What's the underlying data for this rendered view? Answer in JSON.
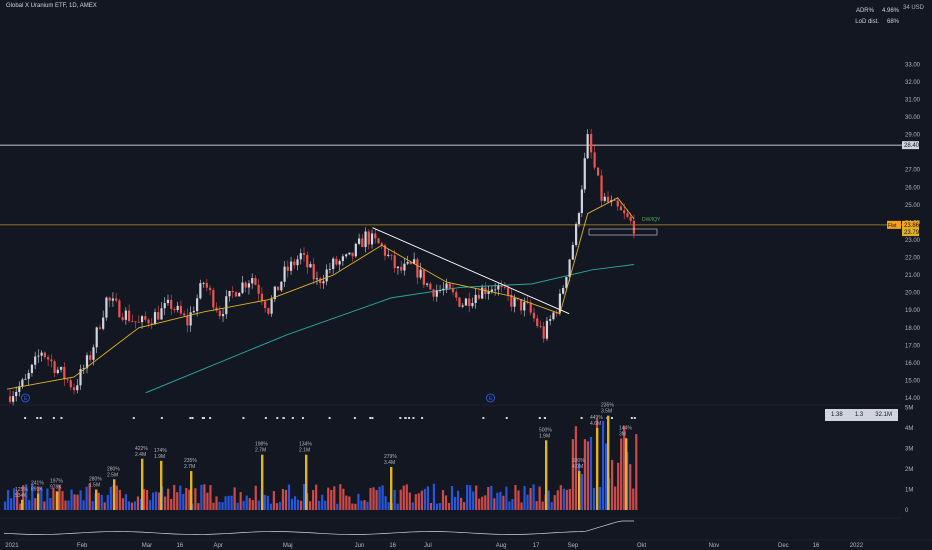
{
  "header": {
    "title": "Global X Uranium ETF, 1D, AMEX",
    "stats": [
      {
        "label": "ADR%",
        "value": "4.96%"
      },
      {
        "label": "LoD dist.",
        "value": "68%"
      }
    ]
  },
  "price_axis": {
    "unit_label": "34 USD",
    "ticks": [
      "33.00",
      "32.00",
      "31.00",
      "30.00",
      "29.00",
      "27.00",
      "26.00",
      "25.00",
      "24.00",
      "23.00",
      "22.00",
      "21.00",
      "20.00",
      "19.00",
      "18.00",
      "17.00",
      "16.00",
      "15.00",
      "14.00"
    ],
    "hline_label": "28.40",
    "flag_label": "Flat",
    "flag_value": "23.86",
    "last_value": "23.79"
  },
  "volume_axis": {
    "ticks": [
      "5M",
      "4M",
      "3M",
      "2M",
      "1M",
      "0"
    ],
    "badge": [
      "1.38",
      "1.3",
      "32.1M"
    ]
  },
  "time_axis": {
    "ticks": [
      "2021",
      "Feb",
      "Mar",
      "16",
      "Apr",
      "Maj",
      "Jun",
      "16",
      "Jul",
      "Aug",
      "17",
      "Sep",
      "Okt",
      "Nov",
      "Dec",
      "16",
      "2022"
    ]
  },
  "annotations": {
    "signal_label": "DW/IQY",
    "volume_labels": [
      [
        "125%",
        "534K"
      ],
      [
        "241%",
        "891K"
      ],
      [
        "197%",
        "978K"
      ],
      [
        "280%",
        "1.5M"
      ],
      [
        "280%",
        "2.5M"
      ],
      [
        "422%",
        "2.4M"
      ],
      [
        "174%",
        "1.9M"
      ],
      [
        "235%",
        "2.7M"
      ],
      [
        "198%",
        "2.7M"
      ],
      [
        "134%",
        "2.1M"
      ],
      [
        "279%",
        "3.4M"
      ],
      [
        "500%",
        "1.9M"
      ],
      [
        "330%",
        "4.0M"
      ],
      [
        "449%",
        "4.6M"
      ],
      [
        "235%",
        "3.5M"
      ],
      [
        "144%",
        "3M"
      ]
    ],
    "earnings_markers": [
      "E",
      "E"
    ]
  },
  "colors": {
    "background": "#131722",
    "up": "#ef5350",
    "down": "#ef5350",
    "up_candle": "#ef5350",
    "sma_short": "#e0b326",
    "sma_long": "#26a69a",
    "trendline": "#ffffff",
    "hline": "#ffffff",
    "resistance": "#e0b326",
    "grid": "#2a2e39"
  },
  "chart_data": {
    "type": "candlestick",
    "title": "Global X Uranium ETF, 1D, AMEX",
    "ylim": [
      14,
      34
    ],
    "horizontal_line": 28.4,
    "resistance_level": 23.86,
    "last_price": 23.79,
    "x_range_dates": [
      "2020-12-28",
      "2022-01-21"
    ],
    "close_path": [
      [
        "2020-12-31",
        14.1
      ],
      [
        "2021-01-08",
        14.9
      ],
      [
        "2021-01-15",
        16.7
      ],
      [
        "2021-01-22",
        15.6
      ],
      [
        "2021-01-29",
        14.6
      ],
      [
        "2021-02-05",
        16.4
      ],
      [
        "2021-02-12",
        19.6
      ],
      [
        "2021-02-19",
        18.9
      ],
      [
        "2021-02-26",
        18.2
      ],
      [
        "2021-03-05",
        18.7
      ],
      [
        "2021-03-12",
        19.3
      ],
      [
        "2021-03-19",
        18.3
      ],
      [
        "2021-03-26",
        20.6
      ],
      [
        "2021-04-02",
        18.9
      ],
      [
        "2021-04-09",
        20.2
      ],
      [
        "2021-04-16",
        20.9
      ],
      [
        "2021-04-23",
        19.1
      ],
      [
        "2021-04-30",
        21.1
      ],
      [
        "2021-05-07",
        22.1
      ],
      [
        "2021-05-14",
        20.6
      ],
      [
        "2021-05-21",
        21.6
      ],
      [
        "2021-05-28",
        21.9
      ],
      [
        "2021-06-04",
        23.2
      ],
      [
        "2021-06-11",
        22.6
      ],
      [
        "2021-06-18",
        21.2
      ],
      [
        "2021-06-25",
        21.5
      ],
      [
        "2021-07-02",
        20.2
      ],
      [
        "2021-07-09",
        20.1
      ],
      [
        "2021-07-16",
        19.4
      ],
      [
        "2021-07-23",
        20.1
      ],
      [
        "2021-07-30",
        20.4
      ],
      [
        "2021-08-06",
        19.5
      ],
      [
        "2021-08-13",
        19.1
      ],
      [
        "2021-08-20",
        17.6
      ],
      [
        "2021-08-27",
        19.6
      ],
      [
        "2021-09-03",
        23.6
      ],
      [
        "2021-09-08",
        28.7
      ],
      [
        "2021-09-14",
        25.4
      ],
      [
        "2021-09-21",
        24.7
      ],
      [
        "2021-09-28",
        23.79
      ]
    ],
    "sma_short_path": [
      [
        "2020-12-31",
        14.5
      ],
      [
        "2021-01-29",
        15.2
      ],
      [
        "2021-02-26",
        18.0
      ],
      [
        "2021-03-26",
        18.9
      ],
      [
        "2021-04-23",
        19.6
      ],
      [
        "2021-05-21",
        21.0
      ],
      [
        "2021-06-11",
        22.7
      ],
      [
        "2021-07-09",
        20.6
      ],
      [
        "2021-08-06",
        19.8
      ],
      [
        "2021-08-27",
        18.8
      ],
      [
        "2021-09-08",
        24.5
      ],
      [
        "2021-09-21",
        25.4
      ],
      [
        "2021-09-28",
        24.2
      ]
    ],
    "sma_long_path": [
      [
        "2021-03-01",
        14.3
      ],
      [
        "2021-05-01",
        17.6
      ],
      [
        "2021-06-15",
        19.7
      ],
      [
        "2021-07-15",
        20.3
      ],
      [
        "2021-08-15",
        20.5
      ],
      [
        "2021-09-10",
        21.3
      ],
      [
        "2021-09-28",
        21.6
      ]
    ],
    "trendline": [
      [
        "2021-06-07",
        23.7
      ],
      [
        "2021-08-31",
        18.8
      ]
    ],
    "volume": {
      "values_m": [
        0.5,
        0.8,
        0.9,
        1.0,
        1.5,
        2.5,
        2.4,
        1.9,
        2.7,
        2.7,
        2.1,
        3.4,
        1.9,
        4.0,
        4.6,
        3.5,
        3.0
      ]
    }
  }
}
